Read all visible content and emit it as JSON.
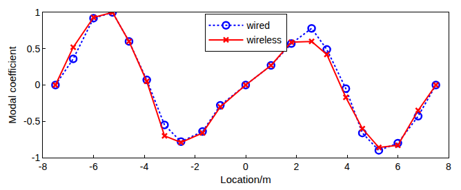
{
  "chart_data": {
    "type": "line",
    "x_label": "Location/m",
    "y_label": "Modal coefficient",
    "x": [
      -7.5,
      -6.8,
      -6.0,
      -5.25,
      -4.6,
      -3.9,
      -3.2,
      -2.55,
      -1.7,
      -1.0,
      0,
      1.0,
      1.8,
      2.6,
      3.2,
      3.95,
      4.6,
      5.25,
      6.0,
      6.8,
      7.5
    ],
    "series": [
      {
        "name": "wired",
        "color": "#0000ff",
        "marker": "circle-open",
        "line_style": "dot",
        "values": [
          0,
          0.36,
          0.92,
          1.0,
          0.6,
          0.07,
          -0.55,
          -0.78,
          -0.64,
          -0.28,
          0,
          0.27,
          0.57,
          0.78,
          0.49,
          -0.05,
          -0.66,
          -0.9,
          -0.8,
          -0.43,
          0
        ]
      },
      {
        "name": "wireless",
        "color": "#ff0000",
        "marker": "x-thin-open",
        "line_style": "solid",
        "values": [
          0,
          0.52,
          0.93,
          1.0,
          0.6,
          0.05,
          -0.7,
          -0.79,
          -0.66,
          -0.3,
          0,
          0.27,
          0.59,
          0.6,
          0.42,
          -0.17,
          -0.6,
          -0.86,
          -0.83,
          -0.35,
          0
        ]
      }
    ],
    "xlim": [
      -8,
      8
    ],
    "xticks": [
      -8,
      -6,
      -4,
      -2,
      0,
      2,
      4,
      6,
      8
    ],
    "ylim": [
      -1,
      1
    ],
    "yticks": [
      -1,
      -0.5,
      0,
      0.5,
      1
    ],
    "grid": false,
    "legend": "top"
  }
}
